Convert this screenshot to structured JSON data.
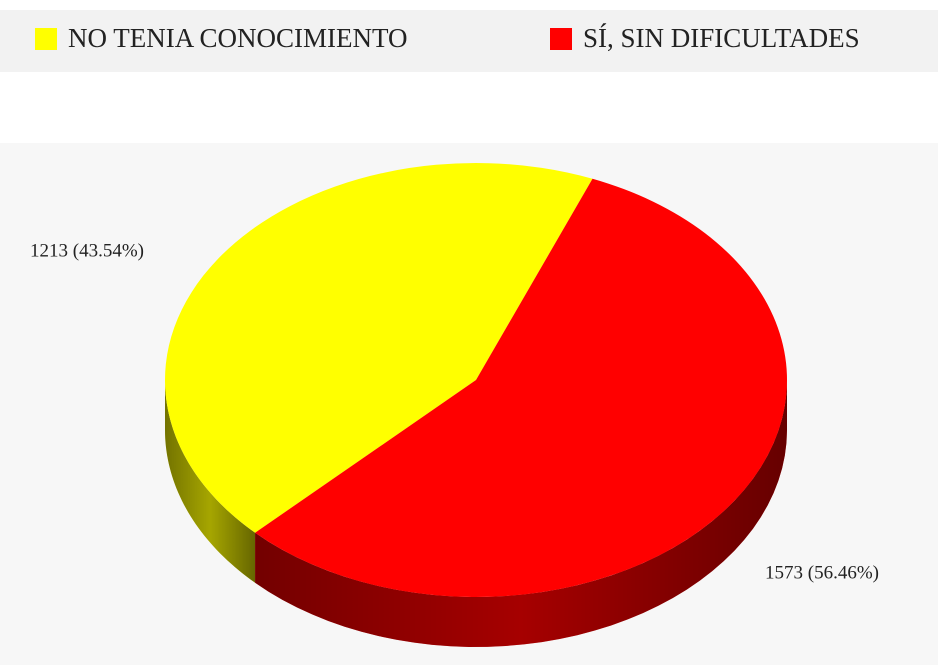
{
  "chart_data": {
    "type": "pie",
    "categories": [
      "NO TENIA CONOCIMIENTO",
      "SÍ, SIN DIFICULTADES"
    ],
    "values": [
      1213,
      1573
    ],
    "value_labels": [
      "1213 (43.54%)",
      "1573 (56.46%)"
    ],
    "colors": [
      "#ffff00",
      "#ff0000"
    ],
    "legend": "top"
  }
}
